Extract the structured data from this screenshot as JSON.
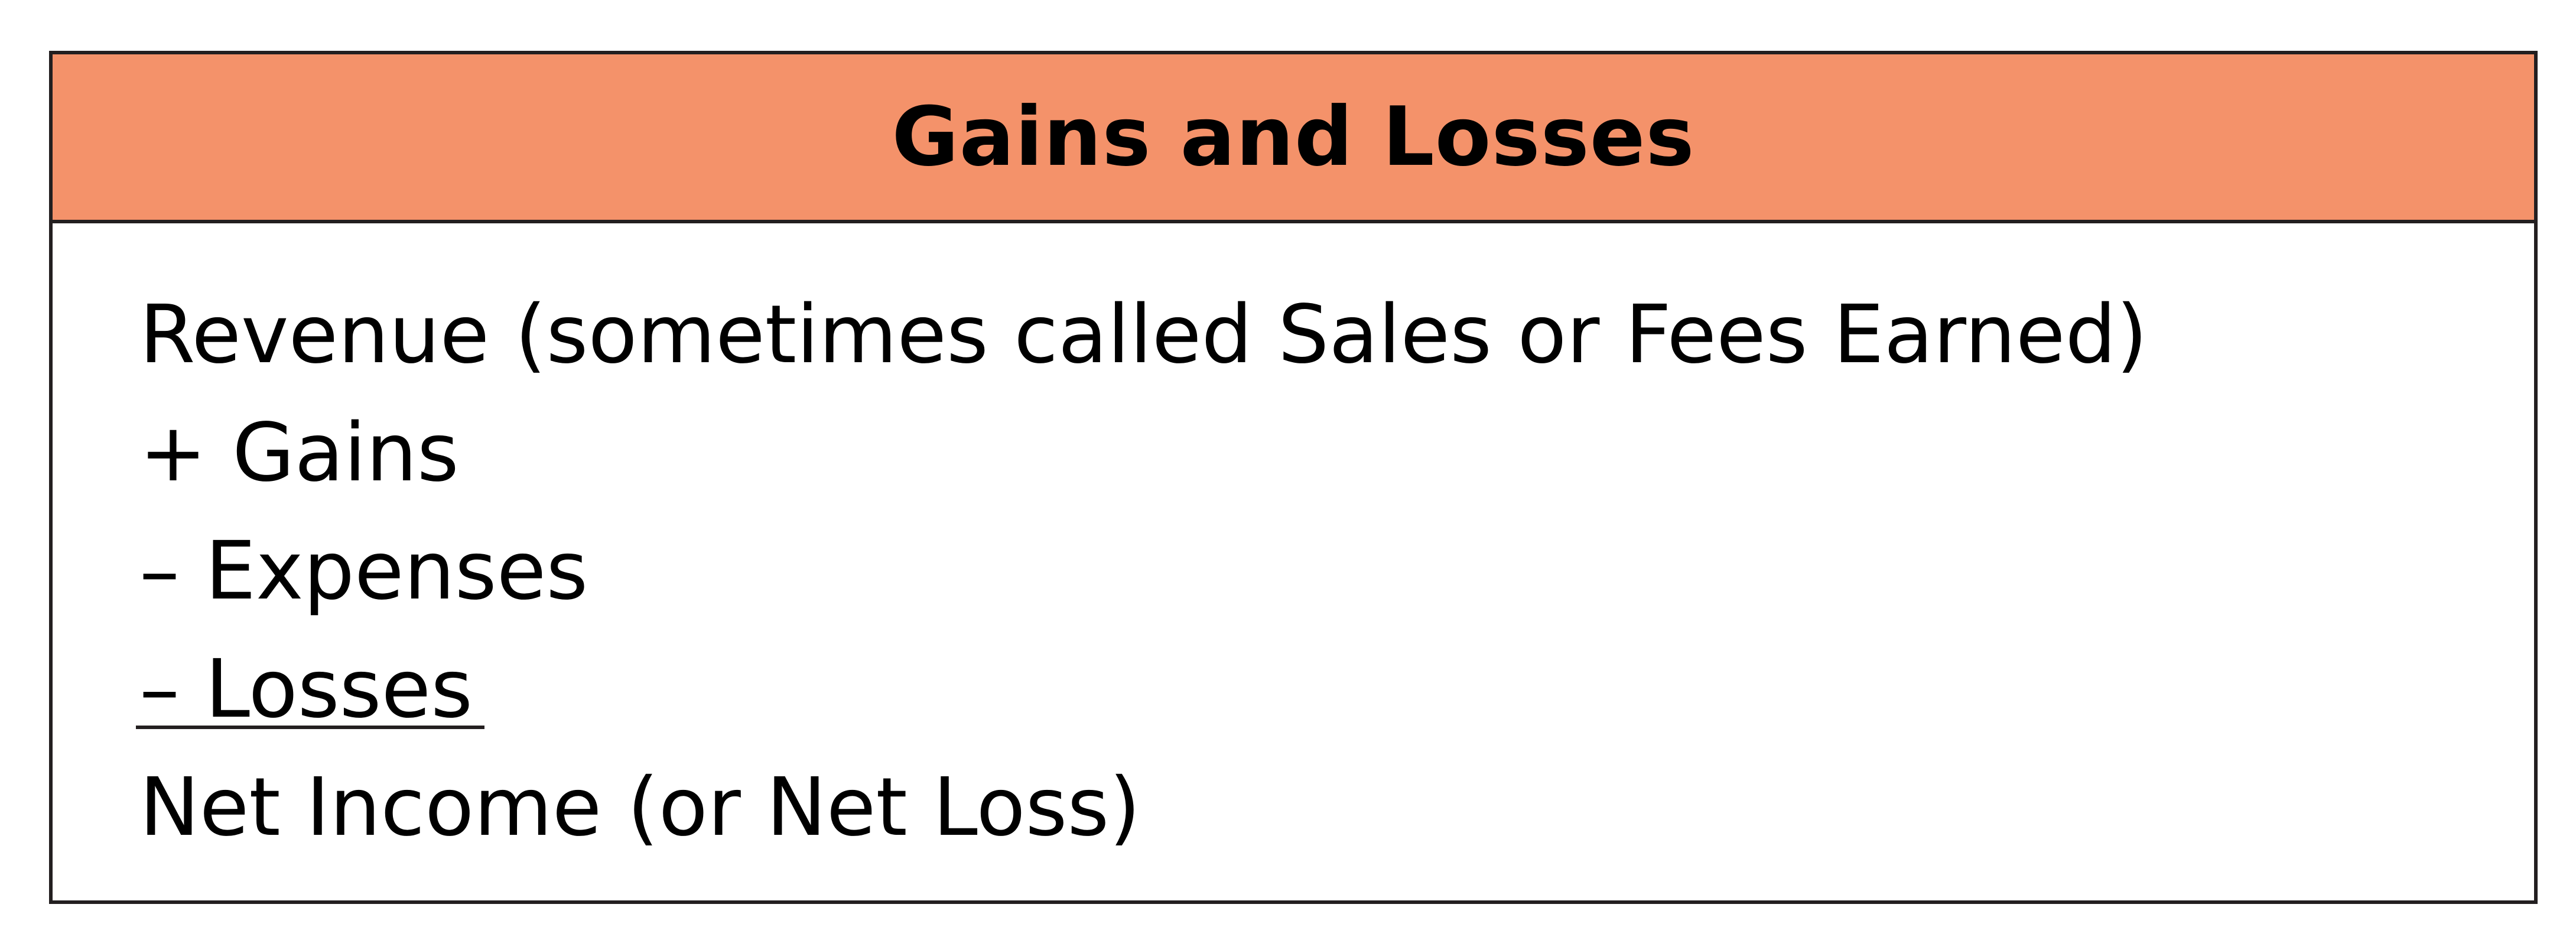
{
  "colors": {
    "header_fill": "#f4926a",
    "border": "#231f20",
    "text": "#000000"
  },
  "title": "Gains and Losses",
  "lines": [
    "Revenue (sometimes called Sales or Fees Earned)",
    "+ Gains",
    "– Expenses",
    "– Losses",
    "Net Income (or Net Loss)"
  ]
}
